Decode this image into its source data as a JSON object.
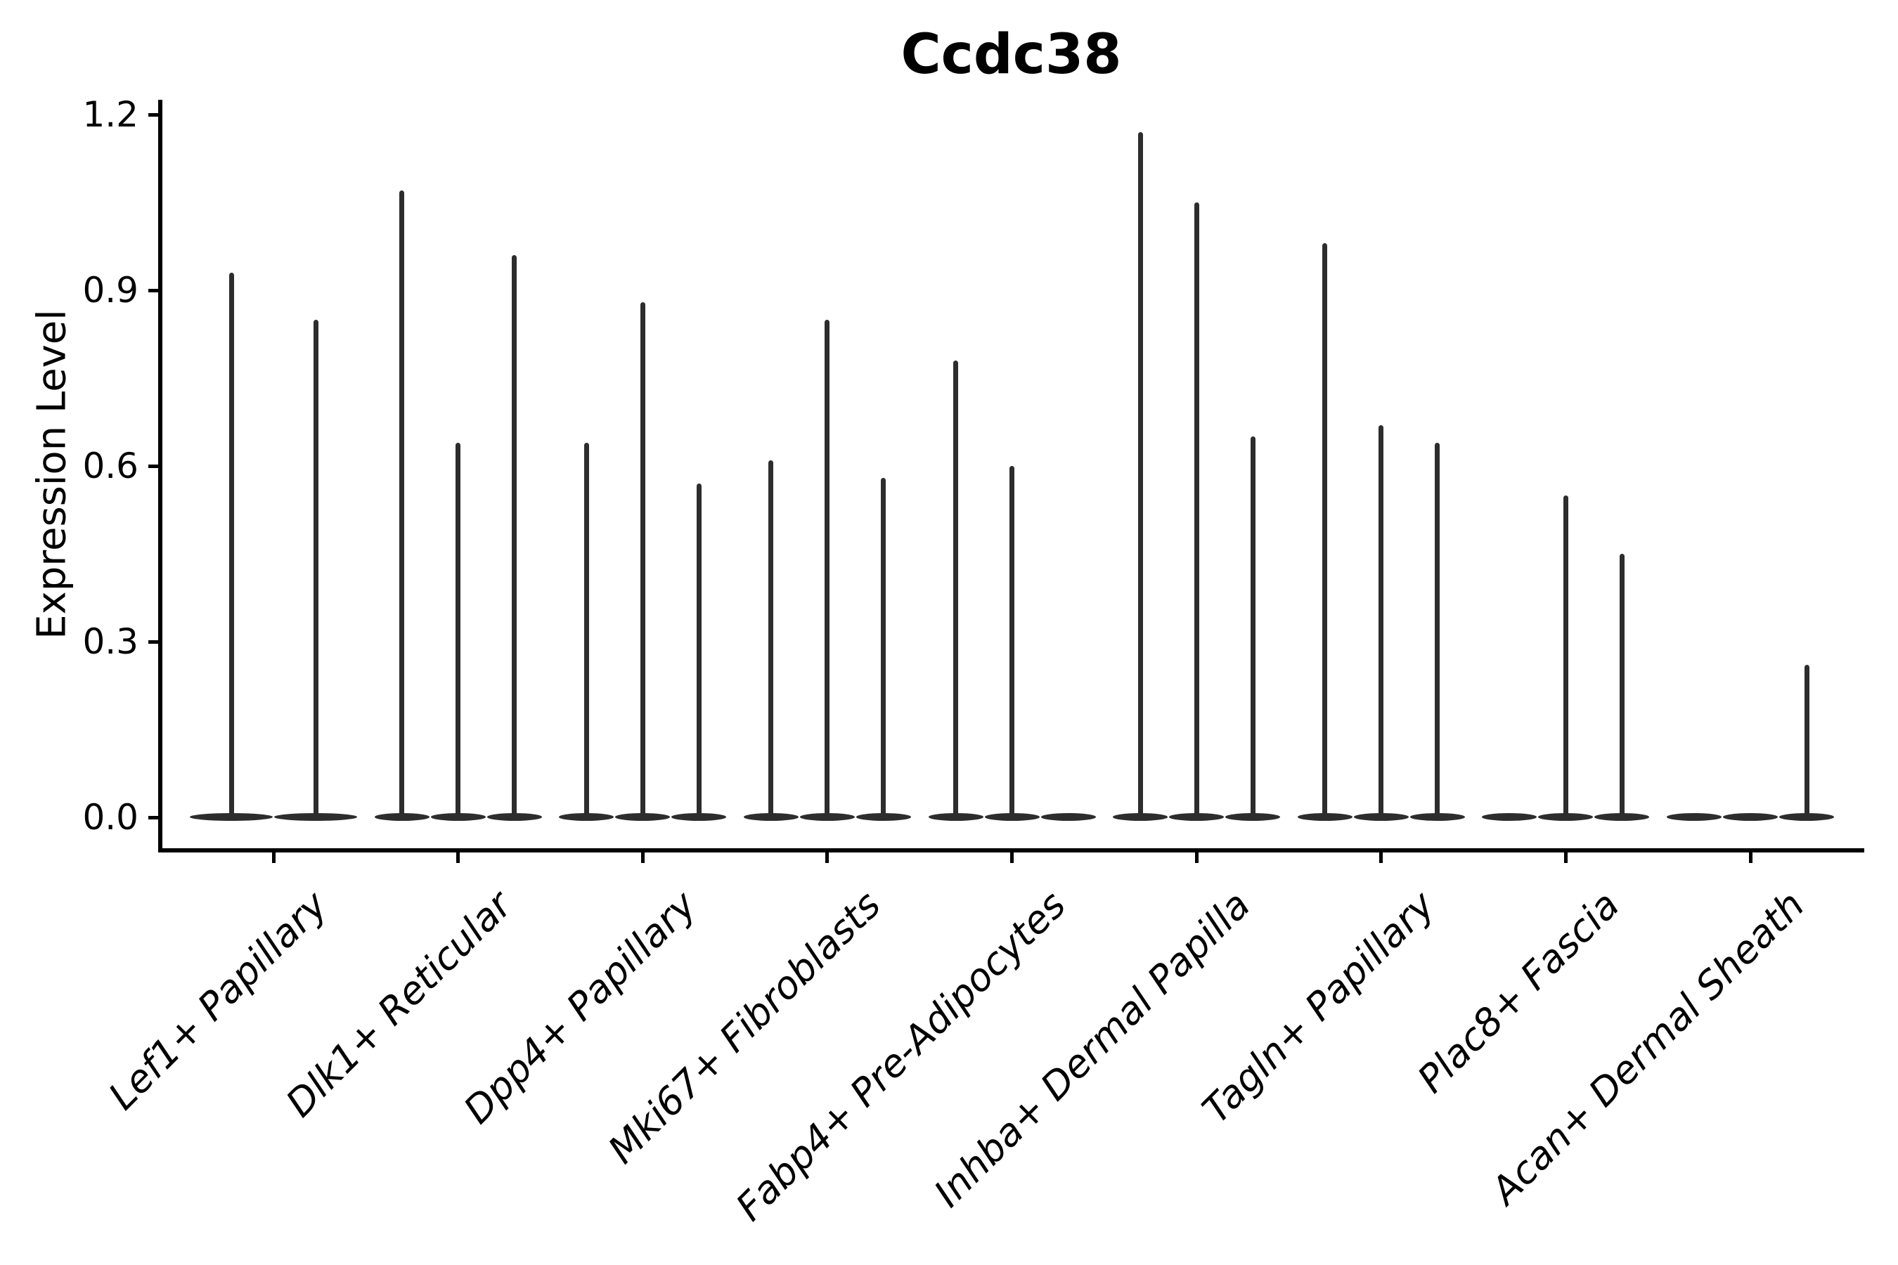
{
  "figure": {
    "title": "Ccdc38",
    "y_axis_label": "Expression Level",
    "background_color": "#ffffff",
    "axis_color": "#000000",
    "violin_color": "#2d2d2d"
  },
  "chart_data": {
    "type": "violin",
    "title": "Ccdc38",
    "xlabel": "",
    "ylabel": "Expression Level",
    "ylim": [
      0.0,
      1.2
    ],
    "yticks": [
      0.0,
      0.3,
      0.6,
      0.9,
      1.2
    ],
    "ytick_labels": [
      "0.0",
      "0.3",
      "0.6",
      "0.9",
      "1.2"
    ],
    "grid": false,
    "legend_position": "none",
    "categories": [
      "Lef1+ Papillary",
      "Dlk1+ Reticular",
      "Dpp4+ Papillary",
      "Mki67+ Fibroblasts",
      "Fabp4+ Pre-Adipocytes",
      "Inhba+ Dermal Papilla",
      "Tagln+ Papillary",
      "Plac8+ Fascia",
      "Acan+ Dermal Sheath"
    ],
    "series": [
      {
        "category": "Lef1+ Papillary",
        "violin_max_values": [
          0.93,
          0.85
        ]
      },
      {
        "category": "Dlk1+ Reticular",
        "violin_max_values": [
          1.07,
          0.64,
          0.96
        ]
      },
      {
        "category": "Dpp4+ Papillary",
        "violin_max_values": [
          0.64,
          0.88,
          0.57
        ]
      },
      {
        "category": "Mki67+ Fibroblasts",
        "violin_max_values": [
          0.61,
          0.85,
          0.58
        ]
      },
      {
        "category": "Fabp4+ Pre-Adipocytes",
        "violin_max_values": [
          0.78,
          0.6,
          0.0
        ]
      },
      {
        "category": "Inhba+ Dermal Papilla",
        "violin_max_values": [
          1.17,
          1.05,
          0.65
        ]
      },
      {
        "category": "Tagln+ Papillary",
        "violin_max_values": [
          0.98,
          0.67,
          0.64
        ]
      },
      {
        "category": "Plac8+ Fascia",
        "violin_max_values": [
          0.0,
          0.55,
          0.45
        ]
      },
      {
        "category": "Acan+ Dermal Sheath",
        "violin_max_values": [
          0.0,
          0.0,
          0.26
        ]
      }
    ],
    "violin_shape_note": "each violin is flat-wide at 0 with a thin spike up to its max value"
  }
}
